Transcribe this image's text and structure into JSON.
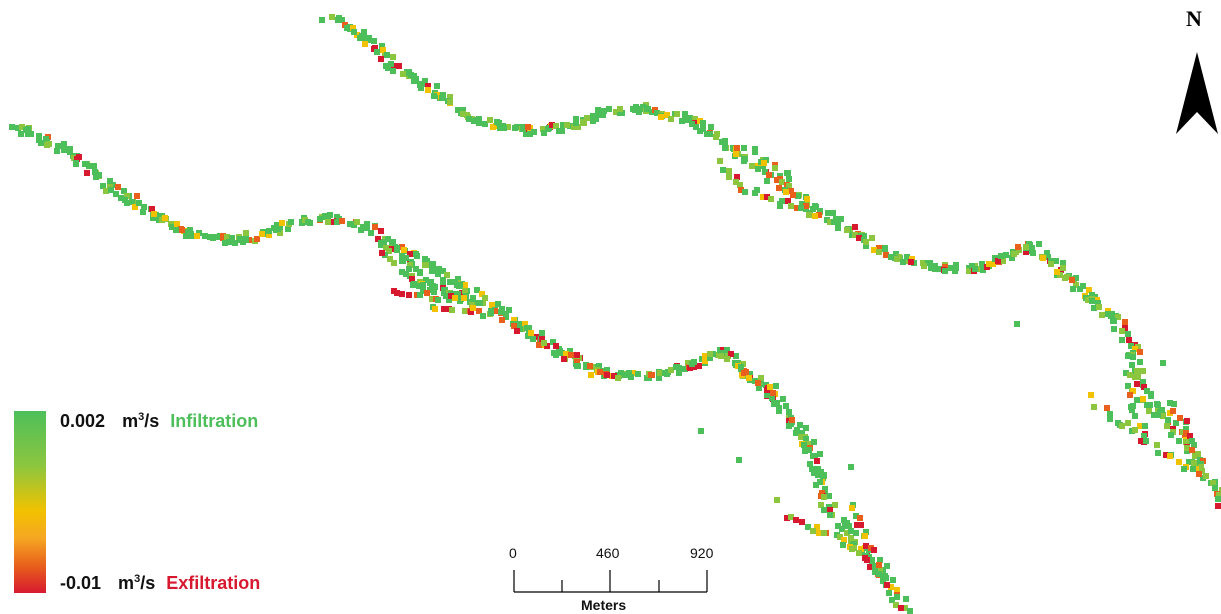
{
  "north_arrow": {
    "label": "N",
    "icon": "north-arrow-icon"
  },
  "legend": {
    "max_value": "0.002",
    "max_unit": "m",
    "max_unit_sup": "3",
    "max_unit_tail": "/s",
    "max_label": "Infiltration",
    "min_value": "-0.01",
    "min_unit": "m",
    "min_unit_sup": "3",
    "min_unit_tail": "/s",
    "min_label": "Exfiltration",
    "colors": {
      "infiltration": "#4dbf5a",
      "mid_green": "#8cc63f",
      "yellow": "#f2c200",
      "orange": "#e8601c",
      "exfiltration": "#d7192f"
    }
  },
  "scale_bar": {
    "ticks": [
      "0",
      "460",
      "920"
    ],
    "units": "Meters"
  }
}
